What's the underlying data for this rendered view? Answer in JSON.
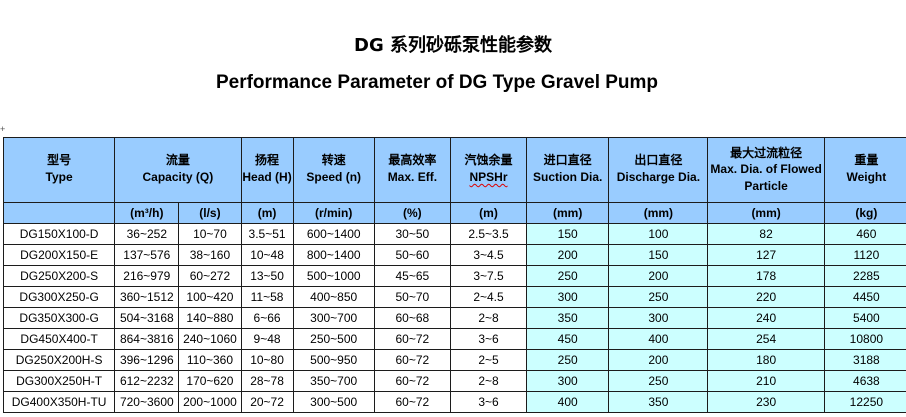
{
  "title_cn": "DG 系列砂砾泵性能参数",
  "title_en": "Performance Parameter of DG Type Gravel Pump",
  "marker": "+",
  "headers": [
    {
      "cn": "型号",
      "en": "Type"
    },
    {
      "cn": "流量",
      "en": "Capacity (Q)"
    },
    {
      "cn": "扬程",
      "en": "Head (H)"
    },
    {
      "cn": "转速",
      "en": "Speed (n)"
    },
    {
      "cn": "最高效率",
      "en": "Max. Eff."
    },
    {
      "cn": "汽蚀余量",
      "en": "NPSHr"
    },
    {
      "cn": "进口直径",
      "en": "Suction Dia."
    },
    {
      "cn": "出口直径",
      "en": "Discharge Dia."
    },
    {
      "cn": "最大过流粒径",
      "en1": "Max. Dia. of Flowed",
      "en2": "Particle"
    },
    {
      "cn": "重量",
      "en": "Weight"
    }
  ],
  "units": [
    "(m³/h)",
    "(l/s)",
    "(m)",
    "(r/min)",
    "(%)",
    "(m)",
    "(mm)",
    "(mm)",
    "(mm)",
    "(kg)"
  ],
  "rows": [
    [
      "DG150X100-D",
      "36~252",
      "10~70",
      "3.5~51",
      "600~1400",
      "30~50",
      "2.5~3.5",
      "150",
      "100",
      "82",
      "460"
    ],
    [
      "DG200X150-E",
      "137~576",
      "38~160",
      "10~48",
      "800~1400",
      "50~60",
      "3~4.5",
      "200",
      "150",
      "127",
      "1120"
    ],
    [
      "DG250X200-S",
      "216~979",
      "60~272",
      "13~50",
      "500~1000",
      "45~65",
      "3~7.5",
      "250",
      "200",
      "178",
      "2285"
    ],
    [
      "DG300X250-G",
      "360~1512",
      "100~420",
      "11~58",
      "400~850",
      "50~70",
      "2~4.5",
      "300",
      "250",
      "220",
      "4450"
    ],
    [
      "DG350X300-G",
      "504~3168",
      "140~880",
      "6~66",
      "300~700",
      "60~68",
      "2~8",
      "350",
      "300",
      "240",
      "5400"
    ],
    [
      "DG450X400-T",
      "864~3816",
      "240~1060",
      "9~48",
      "250~500",
      "60~72",
      "3~6",
      "450",
      "400",
      "254",
      "10800"
    ],
    [
      "DG250X200H-S",
      "396~1296",
      "110~360",
      "10~80",
      "500~950",
      "60~72",
      "2~5",
      "250",
      "200",
      "180",
      "3188"
    ],
    [
      "DG300X250H-T",
      "612~2232",
      "170~620",
      "28~78",
      "350~700",
      "60~72",
      "2~8",
      "300",
      "250",
      "210",
      "4638"
    ],
    [
      "DG400X350H-TU",
      "720~3600",
      "200~1000",
      "20~72",
      "300~500",
      "60~72",
      "3~6",
      "400",
      "350",
      "230",
      "12250"
    ]
  ]
}
